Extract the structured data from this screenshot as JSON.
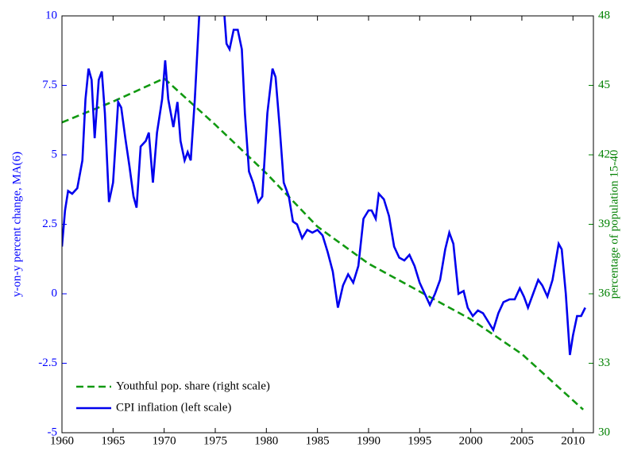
{
  "chart_data": {
    "type": "line",
    "xlim": [
      1960,
      2012
    ],
    "xticks": [
      1960,
      1965,
      1970,
      1975,
      1980,
      1985,
      1990,
      1995,
      2000,
      2005,
      2010
    ],
    "ylim": [
      -5,
      10
    ],
    "yticks": [
      -5,
      -2.5,
      0,
      2.5,
      5,
      7.5,
      10
    ],
    "y2lim": [
      30,
      48
    ],
    "y2ticks": [
      30,
      33,
      36,
      39,
      42,
      45,
      48
    ],
    "ylabel": "y-on-y percent change, MA(6)",
    "y2label": "percentage of population 15-40",
    "ycolor": "#0000ff",
    "y2color": "#008000",
    "legend": "lower left",
    "series": [
      {
        "name": "Youthful pop. share (right scale)",
        "color": "#119911",
        "dash": true,
        "axis": "y2",
        "x": [
          1960,
          1965,
          1970,
          1975,
          1980,
          1985,
          1990,
          1995,
          2000,
          2005,
          2011
        ],
        "values": [
          43.4,
          44.3,
          45.3,
          43.3,
          41.2,
          38.9,
          37.3,
          36.1,
          34.9,
          33.4,
          31.0
        ]
      },
      {
        "name": "CPI inflation (left scale)",
        "color": "#0000ee",
        "dash": false,
        "axis": "y",
        "x": [
          1960,
          1960.3,
          1960.6,
          1961,
          1961.5,
          1962,
          1962.3,
          1962.6,
          1962.9,
          1963.2,
          1963.6,
          1963.9,
          1964.2,
          1964.6,
          1965,
          1965.5,
          1965.8,
          1966.2,
          1966.6,
          1967,
          1967.3,
          1967.7,
          1968.2,
          1968.5,
          1968.9,
          1969.3,
          1969.8,
          1970.1,
          1970.4,
          1970.9,
          1971.3,
          1971.6,
          1972,
          1972.3,
          1972.6,
          1973,
          1973.5,
          1973.8,
          1974.5,
          1975.3,
          1975.8,
          1976.1,
          1976.4,
          1976.8,
          1977.2,
          1977.6,
          1977.9,
          1978.3,
          1978.7,
          1979.2,
          1979.6,
          1980.1,
          1980.6,
          1980.9,
          1981.3,
          1981.7,
          1982.2,
          1982.6,
          1983,
          1983.5,
          1984,
          1984.5,
          1985,
          1985.5,
          1986,
          1986.5,
          1987,
          1987.5,
          1988,
          1988.5,
          1989,
          1989.5,
          1990,
          1990.3,
          1990.7,
          1991,
          1991.5,
          1992,
          1992.5,
          1993,
          1993.5,
          1994,
          1994.5,
          1995,
          1995.5,
          1996,
          1996.5,
          1997,
          1997.5,
          1997.9,
          1998.3,
          1998.8,
          1999.3,
          1999.7,
          2000.2,
          2000.7,
          2001.2,
          2001.7,
          2002.2,
          2002.7,
          2003.2,
          2003.8,
          2004.3,
          2004.8,
          2005.2,
          2005.6,
          2006.1,
          2006.6,
          2007,
          2007.5,
          2008,
          2008.6,
          2008.9,
          2009.3,
          2009.7,
          2010,
          2010.4,
          2010.8,
          2011.2
        ],
        "values": [
          1.7,
          3.0,
          3.7,
          3.6,
          3.8,
          4.8,
          7.0,
          8.1,
          7.7,
          5.6,
          7.7,
          8.0,
          6.5,
          3.3,
          4.0,
          6.9,
          6.7,
          5.6,
          4.6,
          3.5,
          3.1,
          5.3,
          5.5,
          5.8,
          4.0,
          5.8,
          7.0,
          8.4,
          7.0,
          6.0,
          6.9,
          5.5,
          4.8,
          5.1,
          4.8,
          7.0,
          10.5,
          12.0,
          12.5,
          11,
          10.5,
          9.0,
          8.8,
          9.5,
          9.5,
          8.8,
          6.5,
          4.4,
          4.0,
          3.3,
          3.5,
          6.5,
          8.1,
          7.8,
          6.0,
          4.0,
          3.5,
          2.6,
          2.5,
          2.0,
          2.3,
          2.2,
          2.3,
          2.1,
          1.5,
          0.8,
          -0.5,
          0.3,
          0.7,
          0.4,
          1.0,
          2.7,
          3.0,
          3.0,
          2.7,
          3.6,
          3.4,
          2.8,
          1.7,
          1.3,
          1.2,
          1.4,
          1.0,
          0.4,
          0.0,
          -0.4,
          0.0,
          0.5,
          1.6,
          2.2,
          1.8,
          0.0,
          0.1,
          -0.5,
          -0.8,
          -0.6,
          -0.7,
          -1.0,
          -1.3,
          -0.7,
          -0.3,
          -0.2,
          -0.2,
          0.2,
          -0.1,
          -0.5,
          0.0,
          0.5,
          0.3,
          -0.1,
          0.5,
          1.8,
          1.6,
          0.0,
          -2.2,
          -1.5,
          -0.8,
          -0.8,
          -0.5
        ]
      }
    ]
  }
}
